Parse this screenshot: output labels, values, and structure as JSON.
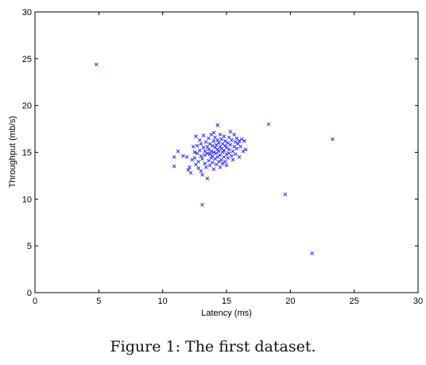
{
  "caption": "Figure 1: The first dataset.",
  "colors": {
    "marker": "#1a1aff",
    "axes": "#000000",
    "background": "#ffffff"
  },
  "chart_data": {
    "type": "scatter",
    "title": "",
    "xlabel": "Latency (ms)",
    "ylabel": "Throughput (mb/s)",
    "xlim": [
      0,
      30
    ],
    "ylim": [
      0,
      30
    ],
    "xticks": [
      0,
      5,
      10,
      15,
      20,
      25,
      30
    ],
    "yticks": [
      0,
      5,
      10,
      15,
      20,
      25,
      30
    ],
    "grid": false,
    "marker": "x",
    "series": [
      {
        "name": "",
        "points": [
          [
            4.8,
            24.4
          ],
          [
            18.3,
            18.0
          ],
          [
            23.3,
            16.4
          ],
          [
            19.6,
            10.5
          ],
          [
            21.7,
            4.2
          ],
          [
            13.1,
            9.4
          ],
          [
            10.9,
            13.5
          ],
          [
            10.9,
            14.5
          ],
          [
            11.2,
            15.1
          ],
          [
            11.6,
            14.6
          ],
          [
            11.9,
            14.5
          ],
          [
            12.0,
            13.1
          ],
          [
            12.1,
            13.4
          ],
          [
            12.2,
            12.8
          ],
          [
            12.3,
            14.2
          ],
          [
            12.4,
            15.6
          ],
          [
            12.5,
            15.0
          ],
          [
            12.5,
            14.4
          ],
          [
            12.6,
            16.7
          ],
          [
            12.6,
            13.7
          ],
          [
            12.7,
            15.7
          ],
          [
            12.7,
            14.9
          ],
          [
            12.8,
            14.0
          ],
          [
            12.8,
            13.3
          ],
          [
            12.9,
            15.2
          ],
          [
            12.9,
            16.3
          ],
          [
            13.0,
            14.6
          ],
          [
            13.0,
            13.0
          ],
          [
            13.0,
            15.9
          ],
          [
            13.1,
            12.6
          ],
          [
            13.1,
            14.3
          ],
          [
            13.2,
            15.5
          ],
          [
            13.2,
            16.8
          ],
          [
            13.3,
            13.8
          ],
          [
            13.3,
            15.1
          ],
          [
            13.3,
            14.7
          ],
          [
            13.4,
            16.1
          ],
          [
            13.4,
            13.4
          ],
          [
            13.5,
            14.9
          ],
          [
            13.5,
            15.6
          ],
          [
            13.5,
            12.2
          ],
          [
            13.6,
            14.1
          ],
          [
            13.6,
            16.5
          ],
          [
            13.6,
            15.3
          ],
          [
            13.7,
            13.6
          ],
          [
            13.7,
            14.8
          ],
          [
            13.7,
            15.9
          ],
          [
            13.8,
            16.9
          ],
          [
            13.8,
            14.4
          ],
          [
            13.8,
            15.1
          ],
          [
            13.9,
            13.9
          ],
          [
            13.9,
            15.7
          ],
          [
            13.9,
            14.6
          ],
          [
            14.0,
            16.2
          ],
          [
            14.0,
            15.0
          ],
          [
            14.0,
            13.2
          ],
          [
            14.0,
            17.1
          ],
          [
            14.1,
            14.3
          ],
          [
            14.1,
            15.5
          ],
          [
            14.1,
            16.6
          ],
          [
            14.2,
            14.9
          ],
          [
            14.2,
            13.7
          ],
          [
            14.2,
            15.8
          ],
          [
            14.3,
            17.9
          ],
          [
            14.3,
            14.5
          ],
          [
            14.3,
            15.3
          ],
          [
            14.3,
            16.3
          ],
          [
            14.4,
            14.0
          ],
          [
            14.4,
            15.1
          ],
          [
            14.4,
            16.0
          ],
          [
            14.5,
            13.4
          ],
          [
            14.5,
            14.7
          ],
          [
            14.5,
            15.6
          ],
          [
            14.5,
            16.9
          ],
          [
            14.6,
            14.2
          ],
          [
            14.6,
            15.4
          ],
          [
            14.6,
            16.4
          ],
          [
            14.7,
            13.8
          ],
          [
            14.7,
            15.0
          ],
          [
            14.7,
            15.9
          ],
          [
            14.8,
            14.5
          ],
          [
            14.8,
            16.7
          ],
          [
            14.8,
            15.2
          ],
          [
            14.9,
            14.0
          ],
          [
            14.9,
            15.7
          ],
          [
            14.9,
            16.2
          ],
          [
            15.0,
            14.8
          ],
          [
            15.0,
            15.5
          ],
          [
            15.0,
            13.6
          ],
          [
            15.1,
            16.0
          ],
          [
            15.1,
            14.4
          ],
          [
            15.2,
            15.3
          ],
          [
            15.2,
            16.6
          ],
          [
            15.2,
            14.9
          ],
          [
            15.3,
            17.2
          ],
          [
            15.3,
            15.8
          ],
          [
            15.4,
            14.6
          ],
          [
            15.4,
            16.3
          ],
          [
            15.5,
            15.1
          ],
          [
            15.5,
            14.2
          ],
          [
            15.6,
            16.9
          ],
          [
            15.6,
            15.6
          ],
          [
            15.7,
            16.1
          ],
          [
            15.7,
            14.8
          ],
          [
            15.8,
            15.4
          ],
          [
            15.8,
            16.5
          ],
          [
            15.9,
            15.9
          ],
          [
            16.0,
            14.5
          ],
          [
            16.0,
            16.2
          ],
          [
            16.1,
            15.6
          ],
          [
            16.2,
            16.4
          ],
          [
            16.3,
            15.1
          ],
          [
            16.5,
            15.3
          ],
          [
            16.4,
            16.2
          ]
        ]
      }
    ]
  }
}
